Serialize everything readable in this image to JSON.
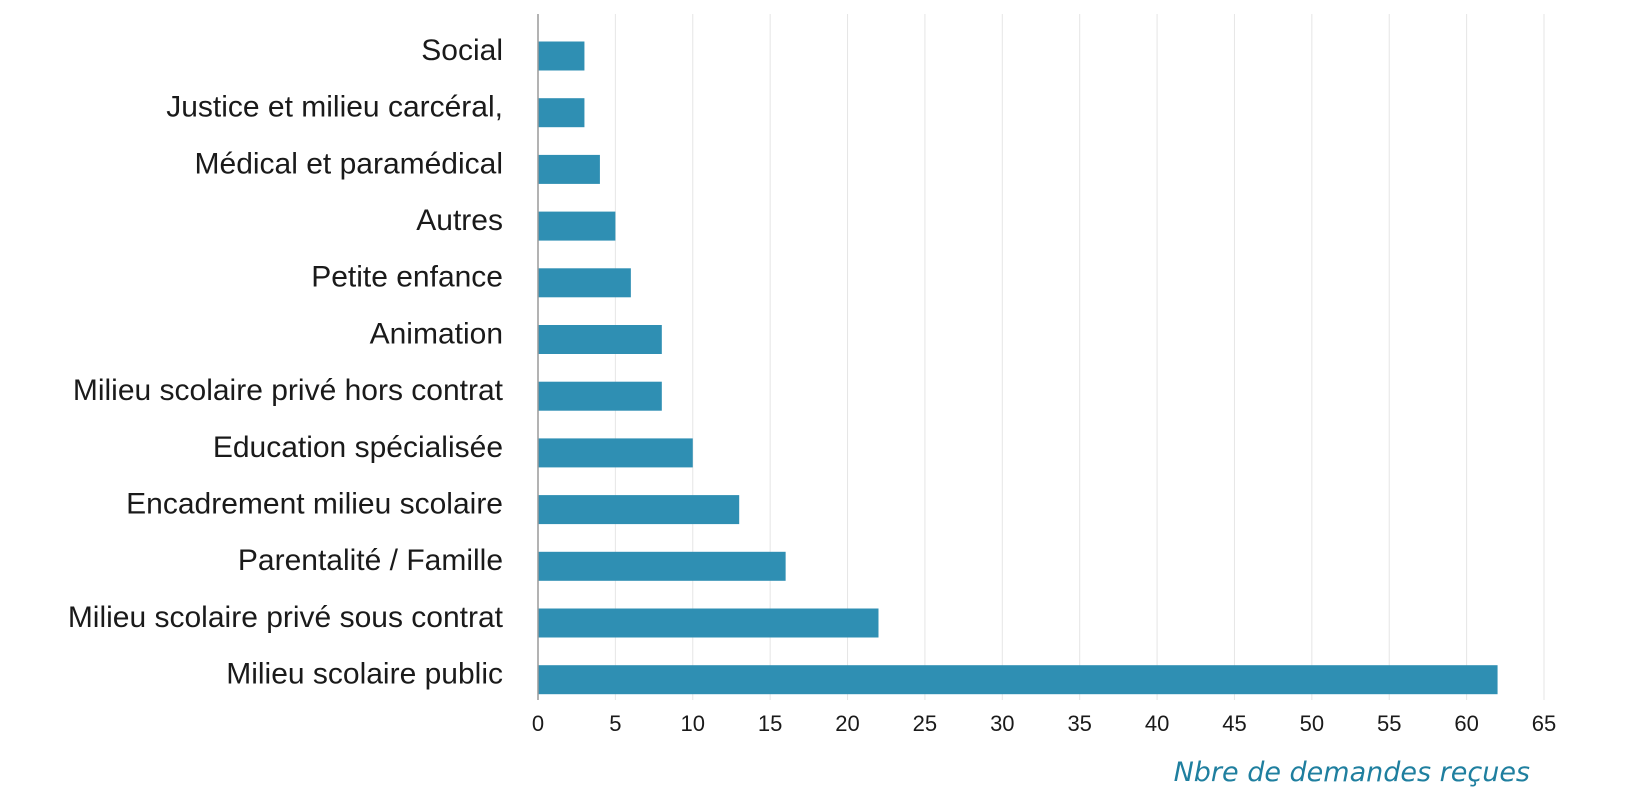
{
  "chart_data": {
    "type": "bar",
    "orientation": "horizontal",
    "categories": [
      "Social",
      "Justice et milieu carcéral,",
      "Médical et paramédical",
      "Autres",
      "Petite enfance",
      "Animation",
      "Milieu scolaire privé hors contrat",
      "Education spécialisée",
      "Encadrement milieu scolaire",
      "Parentalité / Famille",
      "Milieu scolaire privé sous contrat",
      "Milieu scolaire public"
    ],
    "values": [
      3,
      3,
      4,
      5,
      6,
      8,
      8,
      10,
      13,
      16,
      22,
      62
    ],
    "xlim": [
      0,
      65
    ],
    "xticks": [
      "0",
      "5",
      "10",
      "15",
      "20",
      "25",
      "30",
      "35",
      "40",
      "45",
      "50",
      "55",
      "60",
      "65"
    ],
    "xlabel": "Nbre de demandes reçues",
    "grid": "vertical",
    "colors": {
      "bar": "#2f8fb3",
      "xlabel": "#1f7f9f",
      "grid": "#e6e6e6",
      "axis": "#9a9a9a"
    }
  }
}
